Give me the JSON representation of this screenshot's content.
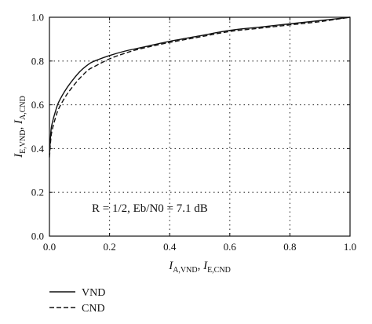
{
  "chart_data": {
    "type": "line",
    "xlabel": {
      "main": "I",
      "sub1": "A,VND",
      "sep": ", ",
      "main2": "I",
      "sub2": "E,CND"
    },
    "ylabel": {
      "main": "I",
      "sub1": "E,VND",
      "sep": ", ",
      "main2": "I",
      "sub2": "A,CND"
    },
    "xlim": [
      0,
      1
    ],
    "ylim": [
      0,
      1
    ],
    "xticks": [
      "0.0",
      "0.2",
      "0.4",
      "0.6",
      "0.8",
      "1.0"
    ],
    "yticks": [
      "0.0",
      "0.2",
      "0.4",
      "0.6",
      "0.8",
      "1.0"
    ],
    "grid": "dotted",
    "annotation": "R = 1/2, Eb/N0 = 7.1 dB",
    "legend_position": "below",
    "series": [
      {
        "name": "VND",
        "style": "solid",
        "x": [
          0.0,
          0.005,
          0.01,
          0.02,
          0.03,
          0.05,
          0.07,
          0.1,
          0.13,
          0.15,
          0.2,
          0.25,
          0.3,
          0.4,
          0.5,
          0.6,
          0.7,
          0.8,
          0.9,
          1.0
        ],
        "y": [
          0.37,
          0.48,
          0.52,
          0.57,
          0.61,
          0.66,
          0.7,
          0.75,
          0.785,
          0.8,
          0.825,
          0.845,
          0.86,
          0.89,
          0.915,
          0.94,
          0.955,
          0.97,
          0.985,
          1.0
        ]
      },
      {
        "name": "CND",
        "style": "dashed",
        "x": [
          0.0,
          0.005,
          0.01,
          0.02,
          0.03,
          0.05,
          0.07,
          0.1,
          0.13,
          0.15,
          0.2,
          0.25,
          0.3,
          0.4,
          0.5,
          0.6,
          0.7,
          0.8,
          0.9,
          1.0
        ],
        "y": [
          0.36,
          0.45,
          0.49,
          0.54,
          0.58,
          0.63,
          0.67,
          0.72,
          0.76,
          0.775,
          0.81,
          0.835,
          0.855,
          0.885,
          0.91,
          0.935,
          0.95,
          0.965,
          0.98,
          1.0
        ]
      }
    ]
  }
}
